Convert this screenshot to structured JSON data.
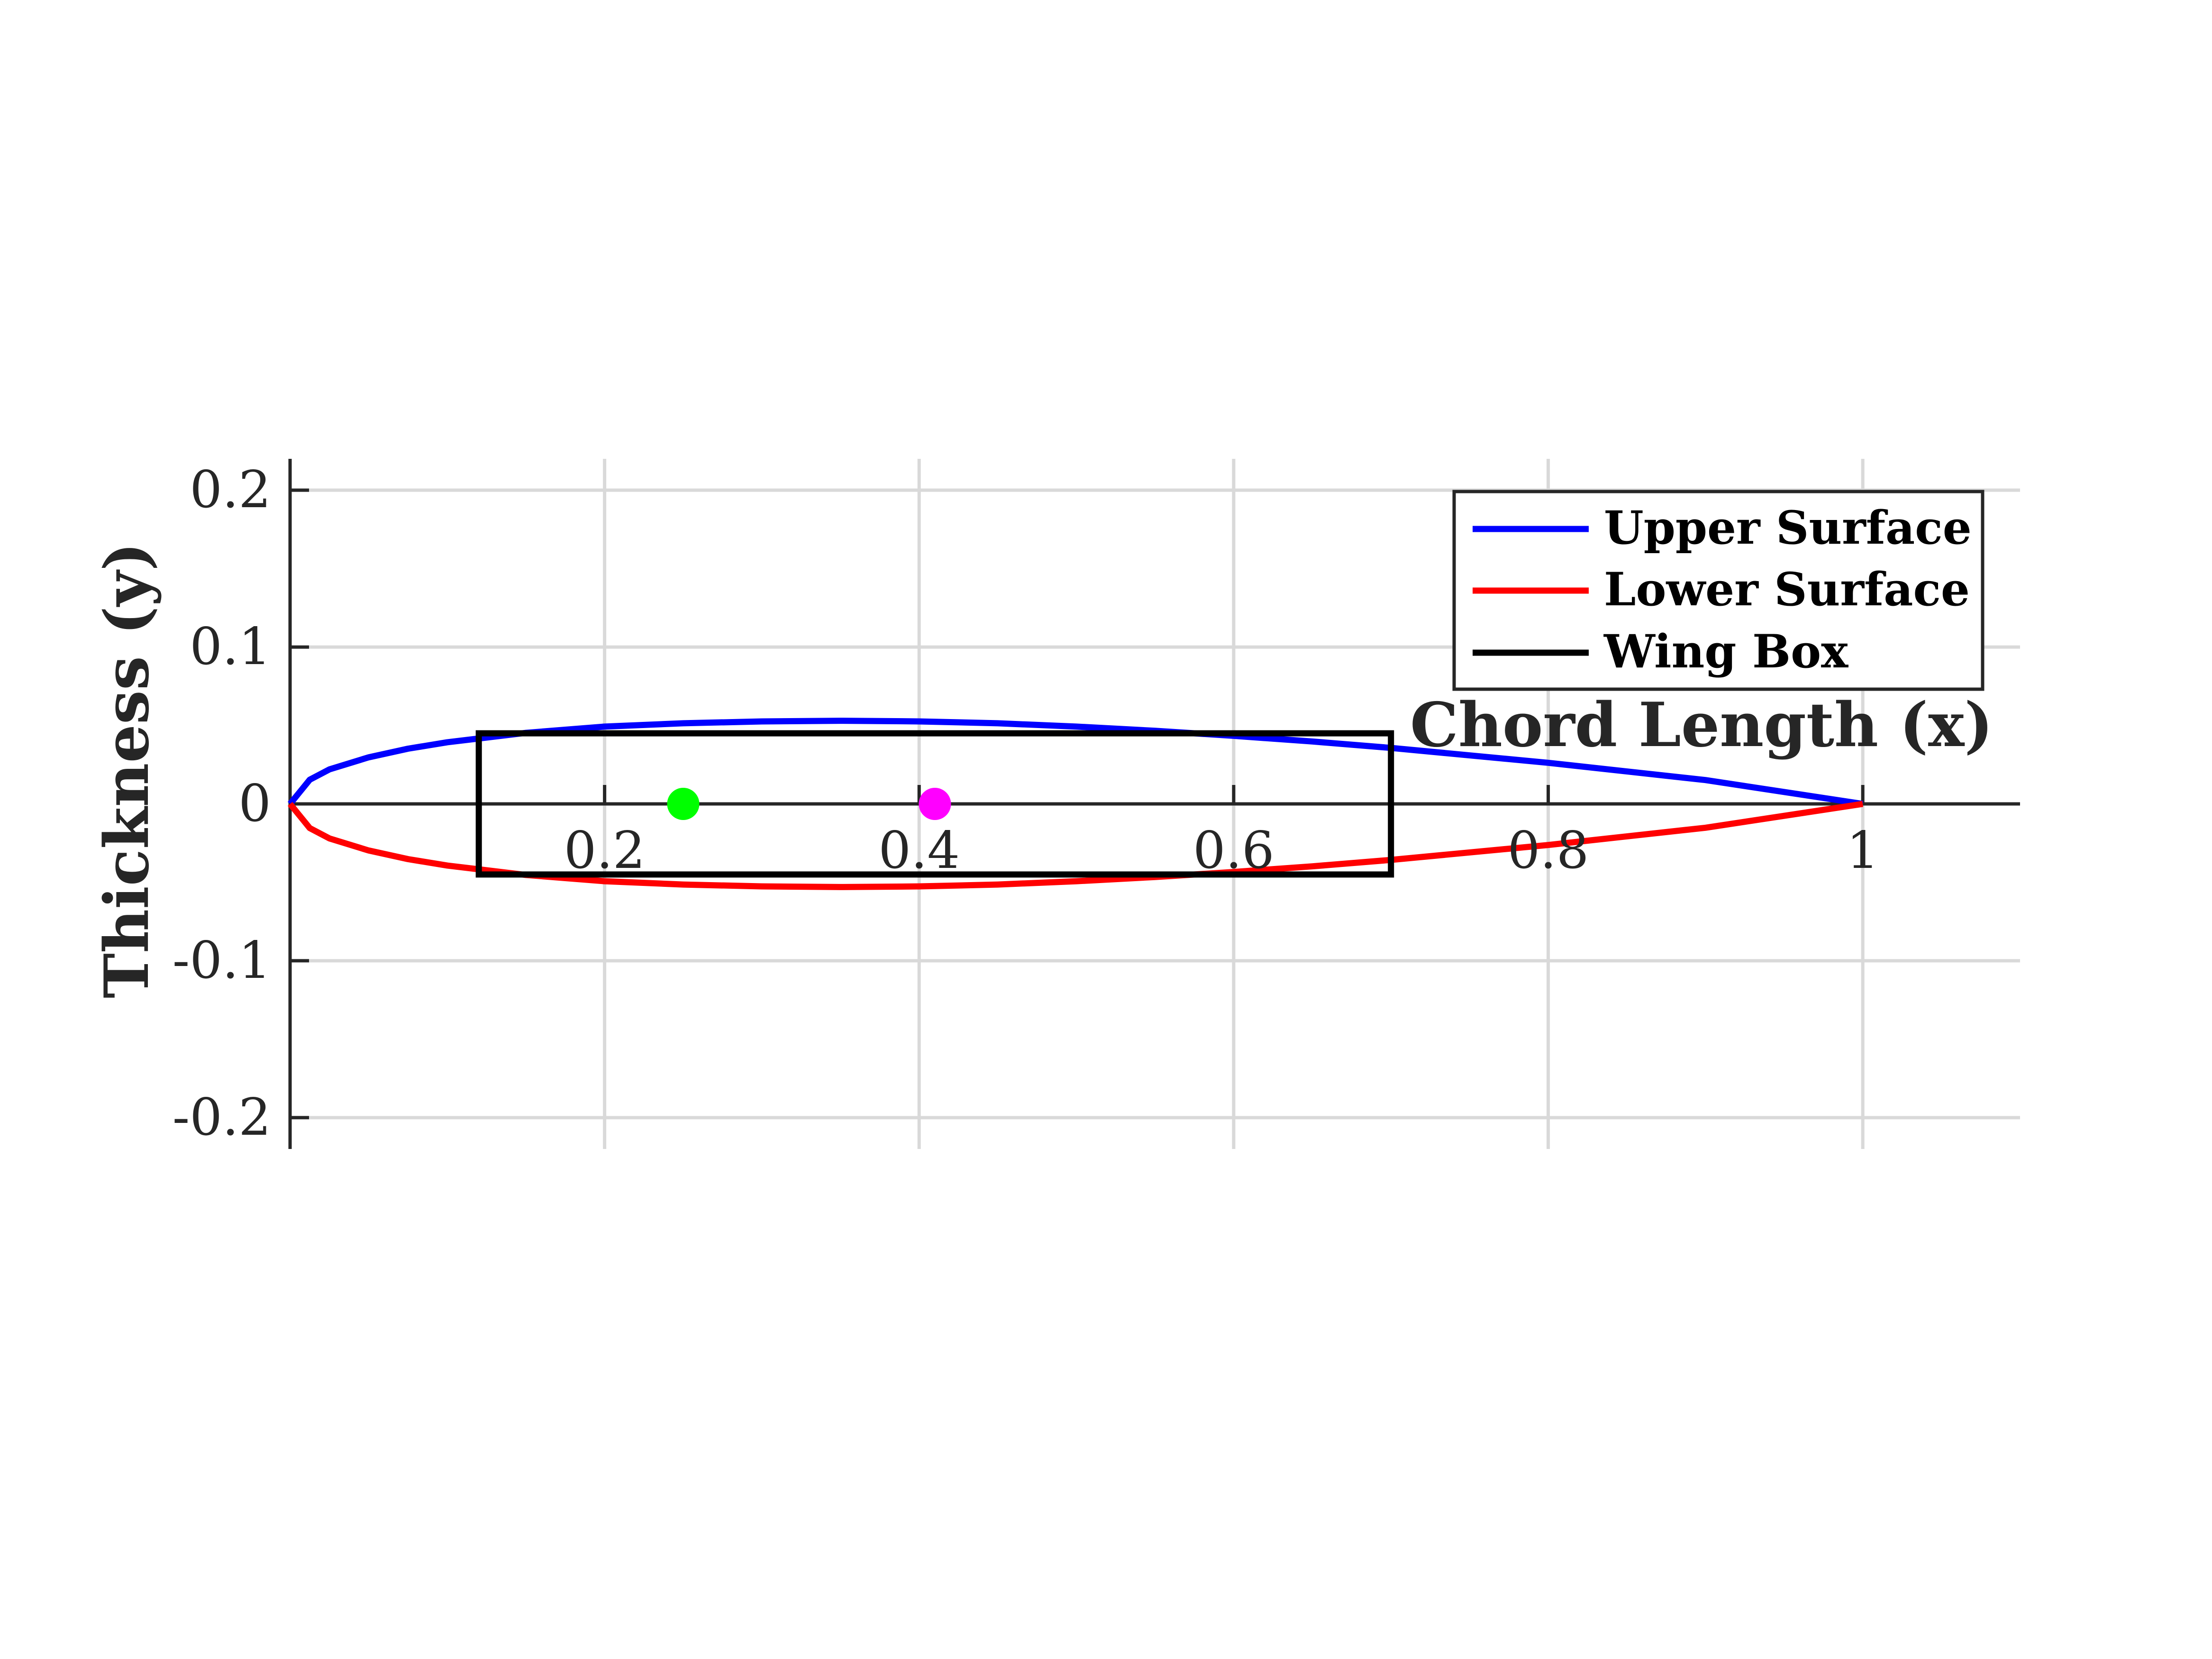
{
  "chart_data": {
    "type": "line",
    "xlabel": "Chord Length (x)",
    "ylabel": "Thickness (y)",
    "xlim": [
      0,
      1.1
    ],
    "ylim": [
      -0.22,
      0.22
    ],
    "x_ticks": [
      0.2,
      0.4,
      0.6,
      0.8,
      1
    ],
    "x_tick_labels": [
      "0.2",
      "0.4",
      "0.6",
      "0.8",
      "1"
    ],
    "y_ticks": [
      0.2,
      0.1,
      0,
      -0.1,
      -0.2
    ],
    "y_tick_labels": [
      "0.2",
      "0.1",
      "0",
      "-0.1",
      "-0.2"
    ],
    "grid": true,
    "axes_through_origin": true,
    "legend_position": "top-right",
    "series": [
      {
        "name": "Upper Surface",
        "color": "#0000ff",
        "x": [
          0,
          0.0125,
          0.025,
          0.05,
          0.075,
          0.1,
          0.15,
          0.2,
          0.25,
          0.3,
          0.35,
          0.4,
          0.45,
          0.5,
          0.55,
          0.6,
          0.65,
          0.7,
          0.8,
          0.9,
          1.0
        ],
        "y": [
          0,
          0.0154,
          0.022,
          0.0297,
          0.0352,
          0.0393,
          0.0453,
          0.0493,
          0.0514,
          0.0526,
          0.053,
          0.0526,
          0.0514,
          0.0493,
          0.0466,
          0.0434,
          0.0398,
          0.0357,
          0.0262,
          0.0152,
          0
        ]
      },
      {
        "name": "Lower Surface",
        "color": "#ff0000",
        "x": [
          0,
          0.0125,
          0.025,
          0.05,
          0.075,
          0.1,
          0.15,
          0.2,
          0.25,
          0.3,
          0.35,
          0.4,
          0.45,
          0.5,
          0.55,
          0.6,
          0.65,
          0.7,
          0.8,
          0.9,
          1.0
        ],
        "y": [
          0,
          -0.0154,
          -0.022,
          -0.0297,
          -0.0352,
          -0.0393,
          -0.0453,
          -0.0493,
          -0.0514,
          -0.0526,
          -0.053,
          -0.0526,
          -0.0514,
          -0.0493,
          -0.0466,
          -0.0434,
          -0.0398,
          -0.0357,
          -0.0262,
          -0.0152,
          0
        ]
      },
      {
        "name": "Wing Box",
        "color": "#000000",
        "rect": {
          "x0": 0.12,
          "x1": 0.7,
          "y0": -0.045,
          "y1": 0.045
        }
      }
    ],
    "points": [
      {
        "x": 0.25,
        "y": 0,
        "color": "#00ff00"
      },
      {
        "x": 0.41,
        "y": 0,
        "color": "#ff00ff"
      }
    ]
  }
}
